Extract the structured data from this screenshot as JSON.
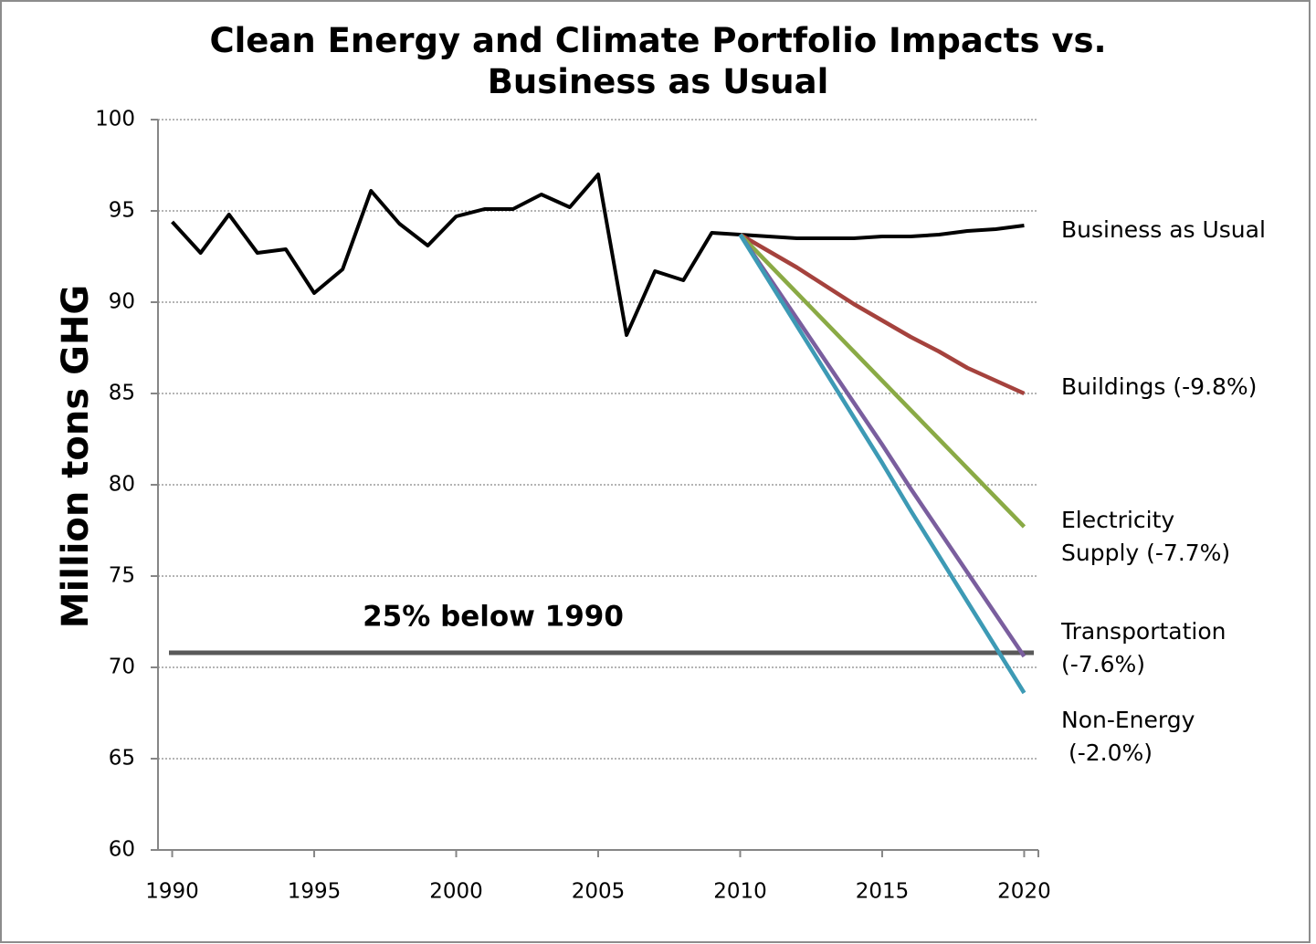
{
  "chart_data": {
    "type": "line",
    "title": "Clean Energy and Climate Portfolio Impacts vs.\nBusiness as Usual",
    "y_label": "Million tons GHG",
    "x": [
      1990,
      1991,
      1992,
      1993,
      1994,
      1995,
      1996,
      1997,
      1998,
      1999,
      2000,
      2001,
      2002,
      2003,
      2004,
      2005,
      2006,
      2007,
      2008,
      2009,
      2010,
      2011,
      2012,
      2013,
      2014,
      2015,
      2016,
      2017,
      2018,
      2019,
      2020
    ],
    "series": [
      {
        "name": "Business as Usual",
        "color": "#000000",
        "values": [
          94.4,
          92.7,
          94.8,
          92.7,
          92.9,
          90.5,
          91.8,
          96.1,
          94.3,
          93.1,
          94.7,
          95.1,
          95.1,
          95.9,
          95.2,
          97.0,
          88.2,
          91.7,
          91.2,
          93.8,
          93.7,
          93.6,
          93.5,
          93.5,
          93.5,
          93.6,
          93.6,
          93.7,
          93.9,
          94.0,
          94.2
        ]
      },
      {
        "name": "Buildings (-9.8%)",
        "color": "#a5423d",
        "values": [
          null,
          null,
          null,
          null,
          null,
          null,
          null,
          null,
          null,
          null,
          null,
          null,
          null,
          null,
          null,
          null,
          null,
          null,
          null,
          null,
          93.7,
          92.8,
          91.9,
          90.9,
          89.9,
          89.0,
          88.1,
          87.3,
          86.4,
          85.7,
          85.0
        ]
      },
      {
        "name": "Electricity\nSupply (-7.7%)",
        "color": "#8aaa45",
        "values": [
          null,
          null,
          null,
          null,
          null,
          null,
          null,
          null,
          null,
          null,
          null,
          null,
          null,
          null,
          null,
          null,
          null,
          null,
          null,
          null,
          93.7,
          92.1,
          90.5,
          88.9,
          87.3,
          85.7,
          84.1,
          82.5,
          80.9,
          79.3,
          77.7
        ]
      },
      {
        "name": "Transportation\n(-7.6%)",
        "color": "#7a5e9e",
        "values": [
          null,
          null,
          null,
          null,
          null,
          null,
          null,
          null,
          null,
          null,
          null,
          null,
          null,
          null,
          null,
          null,
          null,
          null,
          null,
          null,
          93.7,
          91.4,
          89.1,
          86.8,
          84.5,
          82.2,
          79.8,
          77.5,
          75.2,
          72.9,
          70.6
        ]
      },
      {
        "name": "Non-Energy\n (-2.0%)",
        "color": "#3d9ab5",
        "values": [
          null,
          null,
          null,
          null,
          null,
          null,
          null,
          null,
          null,
          null,
          null,
          null,
          null,
          null,
          null,
          null,
          null,
          null,
          null,
          null,
          93.7,
          91.2,
          88.7,
          86.2,
          83.7,
          81.2,
          78.6,
          76.1,
          73.6,
          71.1,
          68.6
        ]
      }
    ],
    "reference_line": {
      "label": "25% below 1990",
      "value": 70.8,
      "color": "#595959"
    },
    "xlim": [
      1989.5,
      2020.5
    ],
    "xticks": [
      1990,
      1995,
      2000,
      2005,
      2010,
      2015,
      2020
    ],
    "ylim": [
      60,
      100
    ],
    "yticks": [
      60,
      65,
      70,
      75,
      80,
      85,
      90,
      95,
      100
    ],
    "grid": true
  }
}
